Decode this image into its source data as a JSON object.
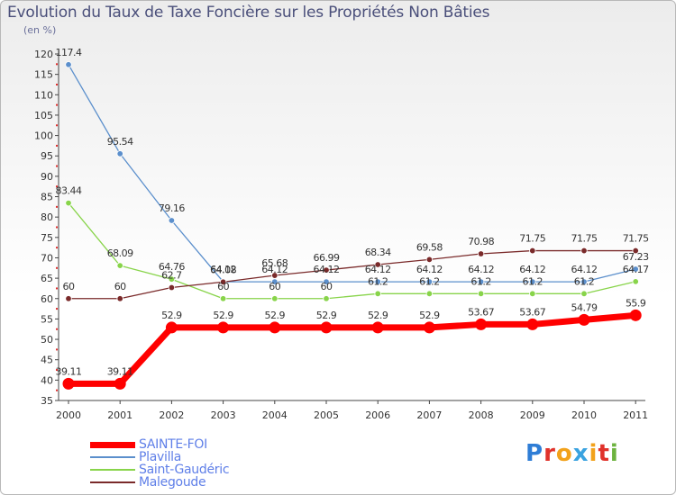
{
  "title": "Evolution du Taux de Taxe Foncière sur les Propriétés Non Bâties",
  "units": "(en %)",
  "logo": {
    "text": "Proxiti",
    "letters": [
      "P",
      "r",
      "o",
      "x",
      "i",
      "t",
      "i"
    ],
    "colors": [
      "#2e7dd6",
      "#e0322b",
      "#f2a21b",
      "#3aa3e0",
      "#f2a21b",
      "#e0322b",
      "#6db33f"
    ]
  },
  "chart_data": {
    "type": "line",
    "title": "Evolution du Taux de Taxe Foncière sur les Propriétés Non Bâties",
    "ylabel": "(en %)",
    "xlabel": "",
    "x": [
      "2000",
      "2001",
      "2002",
      "2003",
      "2004",
      "2005",
      "2006",
      "2007",
      "2008",
      "2009",
      "2010",
      "2011"
    ],
    "ylim": [
      35,
      120
    ],
    "yticks": [
      35,
      40,
      45,
      50,
      55,
      60,
      65,
      70,
      75,
      80,
      85,
      90,
      95,
      100,
      105,
      110,
      115,
      120
    ],
    "grid": false,
    "legend_position": "bottom-left",
    "series": [
      {
        "name": "SAINTE-FOI",
        "color": "#ff0000",
        "thick": true,
        "values": [
          39.11,
          39.11,
          52.9,
          52.9,
          52.9,
          52.9,
          52.9,
          52.9,
          53.67,
          53.67,
          54.79,
          55.9
        ],
        "labels": [
          "39.11",
          "39.11",
          "52.9",
          "52.9",
          "52.9",
          "52.9",
          "52.9",
          "52.9",
          "53.67",
          "53.67",
          "54.79",
          "55.9"
        ]
      },
      {
        "name": "Plavilla",
        "color": "#5b8fcc",
        "thick": false,
        "values": [
          117.4,
          95.54,
          79.16,
          64.12,
          64.12,
          64.12,
          64.12,
          64.12,
          64.12,
          64.12,
          64.12,
          67.23
        ],
        "labels": [
          "117.4",
          "95.54",
          "79.16",
          "64.12",
          "64.12",
          "64.12",
          "64.12",
          "64.12",
          "64.12",
          "64.12",
          "64.12",
          "67.23"
        ]
      },
      {
        "name": "Saint-Gaudéric",
        "color": "#88d44a",
        "thick": false,
        "values": [
          83.44,
          68.09,
          64.76,
          60,
          60,
          60,
          61.2,
          61.2,
          61.2,
          61.2,
          61.2,
          64.17
        ],
        "labels": [
          "83.44",
          "68.09",
          "64.76",
          "60",
          "60",
          "60",
          "61.2",
          "61.2",
          "61.2",
          "61.2",
          "61.2",
          "64.17"
        ]
      },
      {
        "name": "Malegoude",
        "color": "#7a2a2a",
        "thick": false,
        "values": [
          60,
          60,
          62.7,
          64.08,
          65.68,
          66.99,
          68.34,
          69.58,
          70.98,
          71.75,
          71.75,
          71.75
        ],
        "labels": [
          "60",
          "60",
          "62.7",
          "64.08",
          "65.68",
          "66.99",
          "68.34",
          "69.58",
          "70.98",
          "71.75",
          "71.75",
          "71.75"
        ]
      }
    ]
  }
}
